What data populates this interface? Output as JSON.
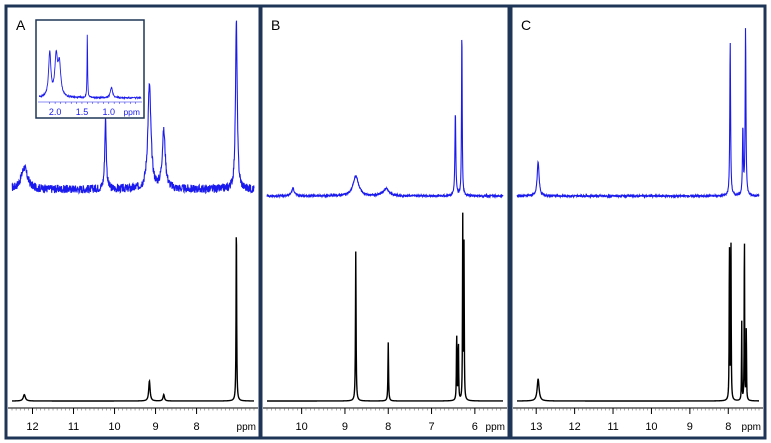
{
  "colors": {
    "frame": "#1f3557",
    "reference": "#000000",
    "measured": "#1a1aee",
    "inset_frame": "#1f3557"
  },
  "chart_data": [
    {
      "type": "line",
      "panel_label": "A",
      "x_unit": "ppm",
      "x_reversed": true,
      "xlim": [
        12.5,
        6.6
      ],
      "xticks": [
        12,
        11,
        10,
        9,
        8
      ],
      "ylim": [
        0,
        1
      ],
      "series": [
        {
          "role": "measured",
          "baseline": 0.04,
          "noise": 0.05,
          "peaks": [
            {
              "x": 12.2,
              "height": 0.13,
              "width": 0.09
            },
            {
              "x": 10.22,
              "height": 0.42,
              "width": 0.022
            },
            {
              "x": 9.15,
              "height": 0.62,
              "width": 0.045
            },
            {
              "x": 8.8,
              "height": 0.34,
              "width": 0.045
            },
            {
              "x": 7.03,
              "height": 1.0,
              "width": 0.025
            }
          ]
        },
        {
          "role": "reference",
          "baseline": 0.0,
          "noise": 0.0,
          "peaks": [
            {
              "x": 12.2,
              "height": 0.035,
              "width": 0.03
            },
            {
              "x": 9.15,
              "height": 0.11,
              "width": 0.02
            },
            {
              "x": 8.8,
              "height": 0.035,
              "width": 0.02
            },
            {
              "x": 7.03,
              "height": 1.0,
              "width": 0.008
            }
          ]
        }
      ],
      "inset": {
        "x_unit": "ppm",
        "x_reversed": true,
        "xlim": [
          2.3,
          0.4
        ],
        "xticks": [
          2.0,
          1.5,
          1.0
        ],
        "tick_labels": [
          "2.0",
          "1.5",
          "1.0"
        ],
        "ylim": [
          0,
          1
        ],
        "series": [
          {
            "role": "measured",
            "baseline": 0.04,
            "noise": 0.03,
            "peaks": [
              {
                "x": 2.1,
                "height": 0.85,
                "width": 0.025
              },
              {
                "x": 1.98,
                "height": 0.75,
                "width": 0.03
              },
              {
                "x": 1.92,
                "height": 0.6,
                "width": 0.03
              },
              {
                "x": 1.4,
                "height": 1.25,
                "width": 0.006
              },
              {
                "x": 0.95,
                "height": 0.2,
                "width": 0.025
              }
            ]
          }
        ]
      }
    },
    {
      "type": "line",
      "panel_label": "B",
      "x_unit": "ppm",
      "x_reversed": true,
      "xlim": [
        10.8,
        5.35
      ],
      "xticks": [
        10,
        9,
        8,
        7,
        6
      ],
      "ylim": [
        0,
        1
      ],
      "series": [
        {
          "role": "measured",
          "baseline": 0.0,
          "noise": 0.012,
          "peaks": [
            {
              "x": 10.2,
              "height": 0.045,
              "width": 0.04
            },
            {
              "x": 8.75,
              "height": 0.12,
              "width": 0.075
            },
            {
              "x": 8.05,
              "height": 0.045,
              "width": 0.075
            },
            {
              "x": 6.45,
              "height": 0.5,
              "width": 0.012
            },
            {
              "x": 6.3,
              "height": 1.0,
              "width": 0.009
            }
          ]
        },
        {
          "role": "reference",
          "baseline": 0.0,
          "noise": 0.0,
          "peaks": [
            {
              "x": 8.75,
              "height": 0.82,
              "width": 0.008
            },
            {
              "x": 8.0,
              "height": 0.32,
              "width": 0.008
            },
            {
              "x": 6.42,
              "height": 0.37,
              "width": 0.007
            },
            {
              "x": 6.38,
              "height": 0.33,
              "width": 0.007
            },
            {
              "x": 6.28,
              "height": 1.0,
              "width": 0.006
            },
            {
              "x": 6.25,
              "height": 0.85,
              "width": 0.006
            }
          ]
        }
      ]
    },
    {
      "type": "line",
      "panel_label": "C",
      "x_unit": "ppm",
      "x_reversed": true,
      "xlim": [
        13.5,
        7.2
      ],
      "xticks": [
        13,
        12,
        11,
        10,
        9,
        8
      ],
      "ylim": [
        0,
        1
      ],
      "series": [
        {
          "role": "measured",
          "baseline": 0.0,
          "noise": 0.012,
          "peaks": [
            {
              "x": 12.95,
              "height": 0.2,
              "width": 0.03
            },
            {
              "x": 7.95,
              "height": 0.92,
              "width": 0.012
            },
            {
              "x": 7.62,
              "height": 0.4,
              "width": 0.012
            },
            {
              "x": 7.55,
              "height": 1.0,
              "width": 0.012
            }
          ]
        },
        {
          "role": "reference",
          "baseline": 0.0,
          "noise": 0.0,
          "peaks": [
            {
              "x": 12.95,
              "height": 0.12,
              "width": 0.03
            },
            {
              "x": 7.97,
              "height": 0.88,
              "width": 0.007
            },
            {
              "x": 7.93,
              "height": 0.86,
              "width": 0.007
            },
            {
              "x": 7.65,
              "height": 0.44,
              "width": 0.006
            },
            {
              "x": 7.58,
              "height": 1.0,
              "width": 0.006
            },
            {
              "x": 7.53,
              "height": 0.42,
              "width": 0.006
            }
          ]
        }
      ]
    }
  ]
}
